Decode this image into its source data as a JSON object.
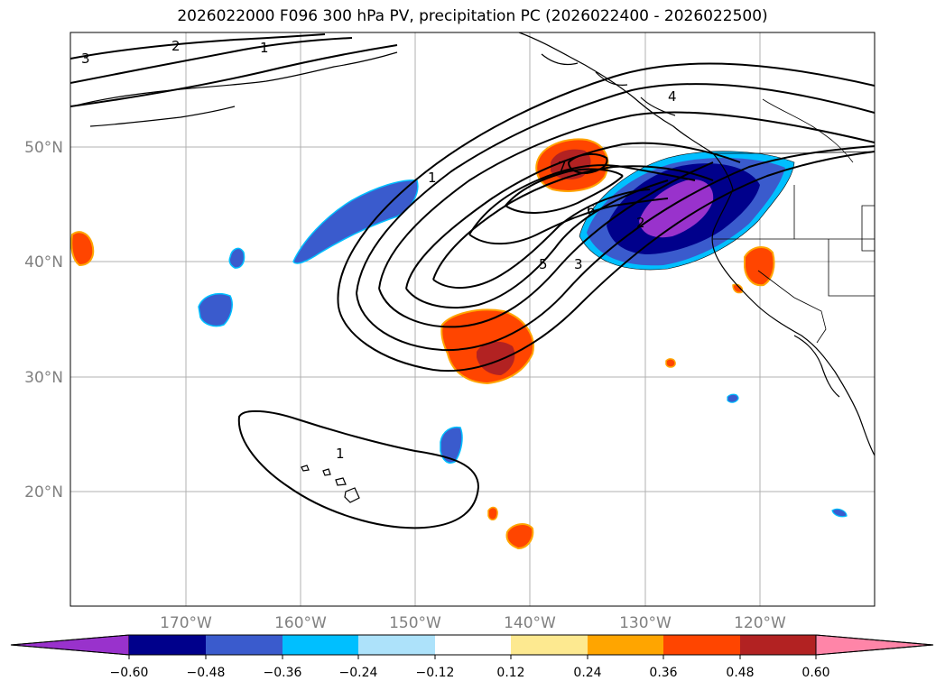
{
  "title": "2026022000 F096 300 hPa PV, precipitation PC (2026022400 - 2026022500)",
  "map": {
    "lat_labels": [
      "50°N",
      "40°N",
      "30°N",
      "20°N"
    ],
    "lon_labels": [
      "170°W",
      "160°W",
      "150°W",
      "140°W",
      "130°W",
      "120°W"
    ],
    "pv_contour_labels": [
      "3",
      "2",
      "1",
      "1",
      "4",
      "7",
      "6",
      "5",
      "3",
      "2",
      "1"
    ],
    "pv_contour_label_names": [
      "pv-3-northwest",
      "pv-2-northwest",
      "pv-1-northwest",
      "pv-1-ridge",
      "pv-4-northeast",
      "pv-7-center",
      "pv-6-center",
      "pv-5-trough",
      "pv-3-trough",
      "pv-2-trough",
      "pv-1-hawaii"
    ]
  },
  "colorbar": {
    "ticks": [
      "−0.60",
      "−0.48",
      "−0.36",
      "−0.24",
      "−0.12",
      "0.12",
      "0.24",
      "0.36",
      "0.48",
      "0.60"
    ],
    "colors": [
      "#9932CC",
      "#00008B",
      "#3A5BCD",
      "#00BFFF",
      "#ADE2FA",
      "#FFFFFF",
      "#FDE990",
      "#FFA500",
      "#FF4500",
      "#B22222",
      "#FF85A8"
    ]
  },
  "colors": {
    "purple": "#9932CC",
    "navy": "#00008B",
    "royal": "#3A5BCD",
    "sky": "#00BFFF",
    "light_blue": "#ADE2FA",
    "yellow": "#FDE990",
    "orange": "#FFA500",
    "orange_red": "#FF4500",
    "firebrick": "#B22222",
    "pink": "#FF85A8",
    "grid": "#B0B0B0",
    "contour": "#000000"
  }
}
